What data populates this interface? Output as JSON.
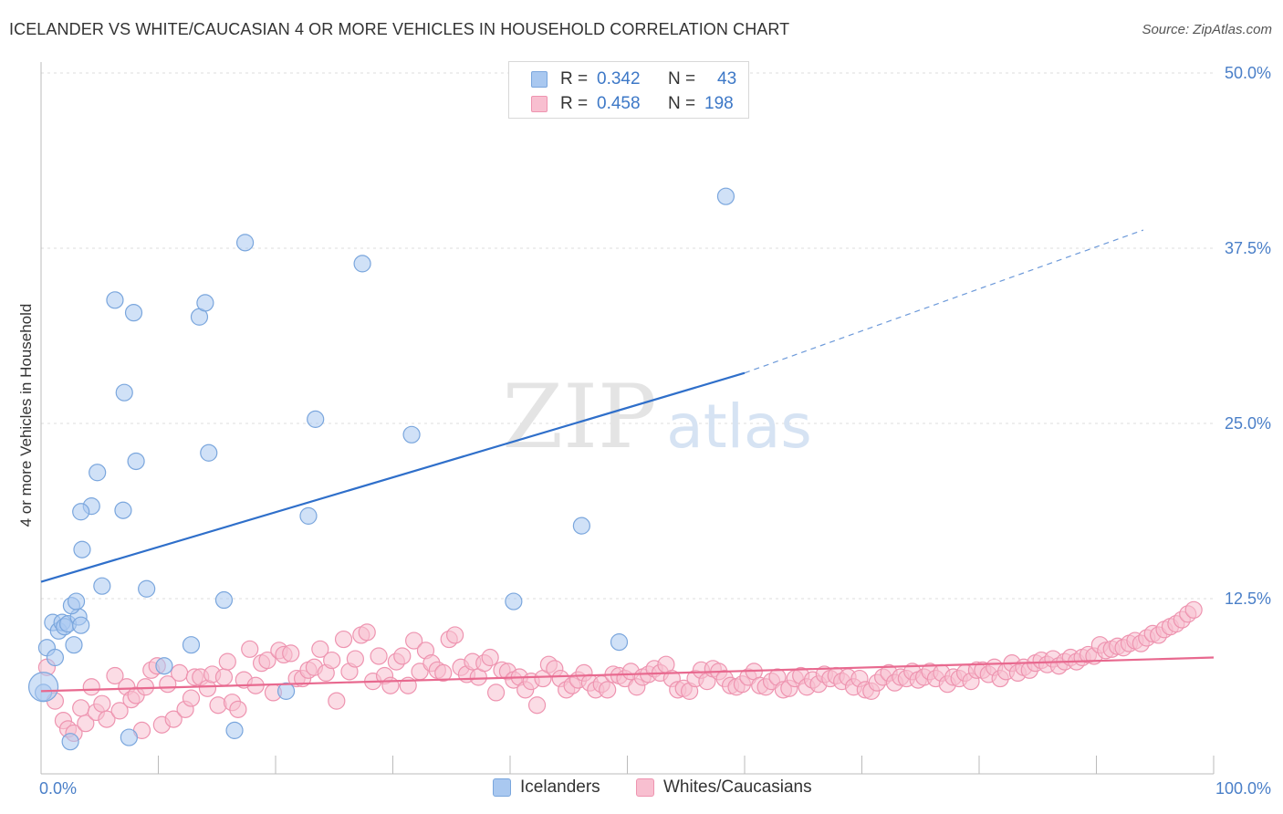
{
  "title": "ICELANDER VS WHITE/CAUCASIAN 4 OR MORE VEHICLES IN HOUSEHOLD CORRELATION CHART",
  "source": "Source: ZipAtlas.com",
  "watermark": {
    "zip": "ZIP",
    "atlas": "atlas"
  },
  "legend_top": [
    {
      "r_label": "R =",
      "r_value": "0.342",
      "n_label": "N =",
      "n_value": "43",
      "color": "#a9c8f0",
      "border": "#7aa6dd"
    },
    {
      "r_label": "R =",
      "r_value": "0.458",
      "n_label": "N =",
      "n_value": "198",
      "color": "#f8bfd0",
      "border": "#ee94b0"
    }
  ],
  "bottom_legend": [
    {
      "label": "Icelanders",
      "color": "#a9c8f0",
      "border": "#7aa6dd"
    },
    {
      "label": "Whites/Caucasians",
      "color": "#f8bfd0",
      "border": "#ee94b0"
    }
  ],
  "chart_data": {
    "type": "scatter",
    "ylabel": "4 or more Vehicles in Household",
    "xlim": [
      0,
      100
    ],
    "ylim": [
      0,
      50
    ],
    "x_tick_labels": [
      {
        "value": 0,
        "label": "0.0%"
      },
      {
        "value": 100,
        "label": "100.0%"
      }
    ],
    "y_tick_labels": [
      {
        "value": 12.5,
        "label": "12.5%"
      },
      {
        "value": 25,
        "label": "25.0%"
      },
      {
        "value": 37.5,
        "label": "37.5%"
      },
      {
        "value": 50,
        "label": "50.0%"
      }
    ],
    "grid": true,
    "series": [
      {
        "name": "Icelanders",
        "color": "#a9c8f0",
        "stroke": "#7aa6dd",
        "line_color": "#2f6fca",
        "trend": {
          "x0": 0,
          "y0": 13.7,
          "x1": 60,
          "y1": 28.6,
          "dash_to_x": 94,
          "dash_to_y": 38.8
        },
        "points": [
          [
            0.2,
            5.8
          ],
          [
            0.5,
            9.0
          ],
          [
            1.0,
            10.8
          ],
          [
            1.2,
            8.3
          ],
          [
            1.5,
            10.2
          ],
          [
            1.8,
            10.8
          ],
          [
            2.0,
            10.5
          ],
          [
            2.3,
            10.7
          ],
          [
            2.5,
            2.3
          ],
          [
            2.8,
            9.2
          ],
          [
            3.2,
            11.2
          ],
          [
            2.6,
            12.0
          ],
          [
            3.0,
            12.3
          ],
          [
            3.4,
            10.6
          ],
          [
            3.5,
            16.0
          ],
          [
            4.3,
            19.1
          ],
          [
            3.4,
            18.7
          ],
          [
            4.8,
            21.5
          ],
          [
            5.2,
            13.4
          ],
          [
            6.3,
            33.8
          ],
          [
            7.0,
            18.8
          ],
          [
            7.1,
            27.2
          ],
          [
            7.5,
            2.6
          ],
          [
            7.9,
            32.9
          ],
          [
            8.1,
            22.3
          ],
          [
            9.0,
            13.2
          ],
          [
            10.5,
            7.7
          ],
          [
            12.8,
            9.2
          ],
          [
            13.5,
            32.6
          ],
          [
            14.0,
            33.6
          ],
          [
            14.3,
            22.9
          ],
          [
            15.6,
            12.4
          ],
          [
            16.5,
            3.1
          ],
          [
            17.4,
            37.9
          ],
          [
            20.9,
            5.9
          ],
          [
            22.8,
            18.4
          ],
          [
            23.4,
            25.3
          ],
          [
            27.4,
            36.4
          ],
          [
            31.6,
            24.2
          ],
          [
            40.3,
            12.3
          ],
          [
            46.1,
            17.7
          ],
          [
            49.3,
            9.4
          ],
          [
            58.4,
            41.2
          ]
        ]
      },
      {
        "name": "Whites/Caucasians",
        "color": "#f8bfd0",
        "stroke": "#ee94b0",
        "line_color": "#e8698f",
        "trend": {
          "x0": 0,
          "y0": 5.9,
          "x1": 100,
          "y1": 8.3
        },
        "points": [
          [
            0.5,
            7.6
          ],
          [
            1.2,
            5.2
          ],
          [
            1.9,
            3.8
          ],
          [
            2.3,
            3.2
          ],
          [
            2.8,
            2.9
          ],
          [
            3.4,
            4.7
          ],
          [
            3.8,
            3.6
          ],
          [
            4.3,
            6.2
          ],
          [
            4.7,
            4.4
          ],
          [
            5.2,
            5.0
          ],
          [
            5.6,
            3.9
          ],
          [
            6.3,
            7.0
          ],
          [
            6.7,
            4.5
          ],
          [
            7.3,
            6.2
          ],
          [
            7.7,
            5.3
          ],
          [
            8.1,
            5.6
          ],
          [
            8.6,
            3.1
          ],
          [
            8.9,
            6.2
          ],
          [
            9.4,
            7.4
          ],
          [
            9.9,
            7.7
          ],
          [
            10.3,
            3.5
          ],
          [
            10.8,
            6.4
          ],
          [
            11.3,
            3.9
          ],
          [
            11.8,
            7.2
          ],
          [
            12.3,
            4.6
          ],
          [
            12.8,
            5.4
          ],
          [
            13.1,
            6.9
          ],
          [
            13.6,
            6.9
          ],
          [
            14.2,
            6.1
          ],
          [
            14.6,
            7.1
          ],
          [
            15.1,
            4.9
          ],
          [
            15.6,
            6.9
          ],
          [
            15.9,
            8.0
          ],
          [
            16.3,
            5.1
          ],
          [
            16.8,
            4.6
          ],
          [
            17.3,
            6.7
          ],
          [
            17.8,
            8.9
          ],
          [
            18.3,
            6.3
          ],
          [
            18.8,
            7.9
          ],
          [
            19.3,
            8.1
          ],
          [
            19.8,
            5.8
          ],
          [
            20.3,
            8.8
          ],
          [
            20.7,
            8.5
          ],
          [
            21.3,
            8.6
          ],
          [
            21.8,
            6.8
          ],
          [
            22.3,
            6.8
          ],
          [
            22.8,
            7.4
          ],
          [
            23.3,
            7.6
          ],
          [
            23.8,
            8.9
          ],
          [
            24.3,
            7.2
          ],
          [
            24.8,
            8.1
          ],
          [
            25.2,
            5.2
          ],
          [
            25.8,
            9.6
          ],
          [
            26.3,
            7.3
          ],
          [
            26.8,
            8.2
          ],
          [
            27.3,
            9.9
          ],
          [
            27.8,
            10.1
          ],
          [
            28.3,
            6.6
          ],
          [
            28.8,
            8.4
          ],
          [
            29.3,
            7.0
          ],
          [
            29.8,
            6.3
          ],
          [
            30.3,
            8.0
          ],
          [
            30.8,
            8.4
          ],
          [
            31.3,
            6.3
          ],
          [
            31.8,
            9.5
          ],
          [
            32.3,
            7.3
          ],
          [
            32.8,
            8.8
          ],
          [
            33.3,
            7.9
          ],
          [
            33.8,
            7.4
          ],
          [
            34.3,
            7.2
          ],
          [
            34.8,
            9.6
          ],
          [
            35.3,
            9.9
          ],
          [
            35.8,
            7.6
          ],
          [
            36.3,
            7.1
          ],
          [
            36.8,
            8.0
          ],
          [
            37.3,
            6.9
          ],
          [
            37.8,
            7.9
          ],
          [
            38.3,
            8.3
          ],
          [
            38.8,
            5.8
          ],
          [
            39.3,
            7.4
          ],
          [
            39.8,
            7.3
          ],
          [
            40.3,
            6.7
          ],
          [
            40.8,
            6.9
          ],
          [
            41.3,
            6.0
          ],
          [
            41.8,
            6.6
          ],
          [
            42.3,
            4.9
          ],
          [
            42.8,
            6.8
          ],
          [
            43.3,
            7.8
          ],
          [
            43.8,
            7.5
          ],
          [
            44.3,
            6.8
          ],
          [
            44.8,
            6.0
          ],
          [
            45.3,
            6.3
          ],
          [
            45.8,
            6.7
          ],
          [
            46.3,
            7.2
          ],
          [
            46.8,
            6.5
          ],
          [
            47.3,
            6.0
          ],
          [
            47.8,
            6.4
          ],
          [
            48.3,
            6.0
          ],
          [
            48.8,
            7.1
          ],
          [
            49.3,
            7.0
          ],
          [
            49.8,
            6.8
          ],
          [
            50.3,
            7.3
          ],
          [
            50.8,
            6.2
          ],
          [
            51.3,
            6.9
          ],
          [
            51.8,
            7.1
          ],
          [
            52.3,
            7.5
          ],
          [
            52.8,
            7.2
          ],
          [
            53.3,
            7.8
          ],
          [
            53.8,
            6.8
          ],
          [
            54.3,
            6.0
          ],
          [
            54.8,
            6.1
          ],
          [
            55.3,
            5.9
          ],
          [
            55.8,
            6.8
          ],
          [
            56.3,
            7.4
          ],
          [
            56.8,
            6.6
          ],
          [
            57.3,
            7.5
          ],
          [
            57.8,
            7.3
          ],
          [
            58.3,
            6.8
          ],
          [
            58.8,
            6.3
          ],
          [
            59.3,
            6.2
          ],
          [
            59.8,
            6.4
          ],
          [
            60.3,
            6.9
          ],
          [
            60.8,
            7.3
          ],
          [
            61.3,
            6.3
          ],
          [
            61.8,
            6.2
          ],
          [
            62.3,
            6.6
          ],
          [
            62.8,
            6.9
          ],
          [
            63.3,
            6.0
          ],
          [
            63.8,
            6.1
          ],
          [
            64.3,
            6.8
          ],
          [
            64.8,
            7.0
          ],
          [
            65.3,
            6.2
          ],
          [
            65.8,
            6.7
          ],
          [
            66.3,
            6.4
          ],
          [
            66.8,
            7.1
          ],
          [
            67.3,
            6.8
          ],
          [
            67.8,
            7.0
          ],
          [
            68.3,
            6.6
          ],
          [
            68.8,
            6.9
          ],
          [
            69.3,
            6.2
          ],
          [
            69.8,
            6.8
          ],
          [
            70.3,
            6.0
          ],
          [
            70.8,
            5.9
          ],
          [
            71.3,
            6.5
          ],
          [
            71.8,
            6.9
          ],
          [
            72.3,
            7.2
          ],
          [
            72.8,
            6.5
          ],
          [
            73.3,
            6.9
          ],
          [
            73.8,
            6.8
          ],
          [
            74.3,
            7.3
          ],
          [
            74.8,
            6.7
          ],
          [
            75.3,
            6.9
          ],
          [
            75.8,
            7.3
          ],
          [
            76.3,
            6.8
          ],
          [
            76.8,
            7.2
          ],
          [
            77.3,
            6.4
          ],
          [
            77.8,
            6.9
          ],
          [
            78.3,
            6.8
          ],
          [
            78.8,
            7.2
          ],
          [
            79.3,
            6.6
          ],
          [
            79.8,
            7.4
          ],
          [
            80.3,
            7.4
          ],
          [
            80.8,
            7.1
          ],
          [
            81.3,
            7.6
          ],
          [
            81.8,
            6.8
          ],
          [
            82.3,
            7.3
          ],
          [
            82.8,
            7.9
          ],
          [
            83.3,
            7.2
          ],
          [
            83.8,
            7.6
          ],
          [
            84.3,
            7.4
          ],
          [
            84.8,
            7.9
          ],
          [
            85.3,
            8.1
          ],
          [
            85.8,
            7.8
          ],
          [
            86.3,
            8.2
          ],
          [
            86.8,
            7.7
          ],
          [
            87.3,
            8.0
          ],
          [
            87.8,
            8.3
          ],
          [
            88.3,
            8.0
          ],
          [
            88.8,
            8.3
          ],
          [
            89.3,
            8.5
          ],
          [
            89.8,
            8.4
          ],
          [
            90.3,
            9.2
          ],
          [
            90.8,
            8.8
          ],
          [
            91.3,
            8.9
          ],
          [
            91.8,
            9.1
          ],
          [
            92.3,
            9.0
          ],
          [
            92.8,
            9.3
          ],
          [
            93.3,
            9.5
          ],
          [
            93.8,
            9.3
          ],
          [
            94.3,
            9.7
          ],
          [
            94.8,
            10.0
          ],
          [
            95.3,
            9.9
          ],
          [
            95.8,
            10.3
          ],
          [
            96.3,
            10.5
          ],
          [
            96.8,
            10.7
          ],
          [
            97.3,
            11.0
          ],
          [
            97.8,
            11.4
          ],
          [
            98.3,
            11.7
          ]
        ]
      }
    ]
  }
}
